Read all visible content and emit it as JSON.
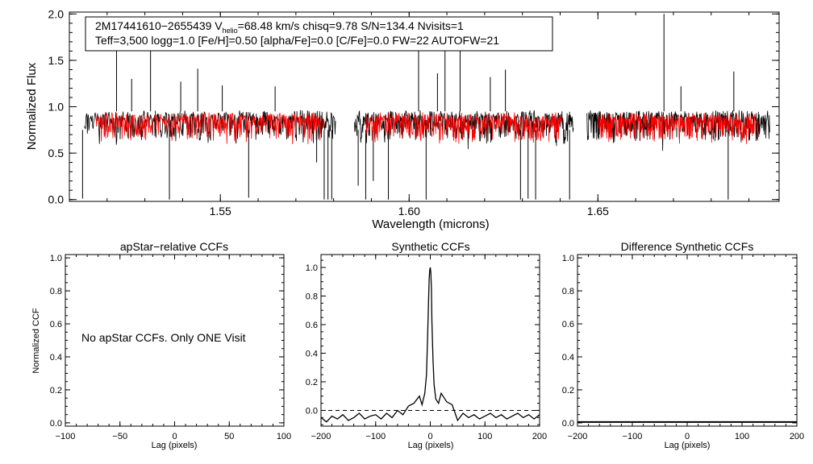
{
  "chart_data": [
    {
      "type": "line",
      "name": "spectrum",
      "xlabel": "Wavelength (microns)",
      "ylabel": "Normalized Flux",
      "xlim": [
        1.51,
        1.698
      ],
      "ylim": [
        -0.02,
        2.02
      ],
      "x_ticks": [
        1.55,
        1.6,
        1.65
      ],
      "x_tick_labels": [
        "1.55",
        "1.60",
        "1.65"
      ],
      "y_ticks": [
        0.0,
        0.5,
        1.0,
        1.5,
        2.0
      ],
      "y_tick_labels": [
        "0.0",
        "0.5",
        "1.0",
        "1.5",
        "2.0"
      ],
      "info_box": {
        "line1_pre": "2M17441610−2655439  V",
        "line1_sub": "helio",
        "line1_post": "=68.48 km/s  chisq=9.78  S/N=134.4  Nvisits=1",
        "line2": "Teff=3,500 logg=1.0 [Fe/H]=0.50 [alpha/Fe]=0.0 [C/Fe]=0.0 FW=22 AUTOFW=21"
      },
      "chip_ranges": [
        [
          1.514,
          1.5805
        ],
        [
          1.5855,
          1.6435
        ],
        [
          1.647,
          1.6955
        ]
      ],
      "series": [
        {
          "role": "observed",
          "color": "#000000",
          "continuum": 0.92
        },
        {
          "role": "model",
          "color": "#ff0000",
          "continuum": 0.9
        }
      ],
      "emission_spikes": [
        {
          "x": 1.5225,
          "y": 1.62
        },
        {
          "x": 1.5265,
          "y": 1.3
        },
        {
          "x": 1.5315,
          "y": 1.73
        },
        {
          "x": 1.5395,
          "y": 1.27
        },
        {
          "x": 1.544,
          "y": 1.41
        },
        {
          "x": 1.5505,
          "y": 1.23
        },
        {
          "x": 1.5645,
          "y": 1.22
        },
        {
          "x": 1.6025,
          "y": 1.65
        },
        {
          "x": 1.6075,
          "y": 1.36
        },
        {
          "x": 1.6095,
          "y": 1.93
        },
        {
          "x": 1.6135,
          "y": 1.7
        },
        {
          "x": 1.6215,
          "y": 1.32
        },
        {
          "x": 1.6255,
          "y": 1.4
        },
        {
          "x": 1.6675,
          "y": 2.0
        },
        {
          "x": 1.672,
          "y": 1.22
        },
        {
          "x": 1.686,
          "y": 1.38
        }
      ],
      "absorption_dips": [
        {
          "x": 1.5135,
          "y": 0.01
        },
        {
          "x": 1.5365,
          "y": 0.0
        },
        {
          "x": 1.5575,
          "y": 0.02
        },
        {
          "x": 1.5755,
          "y": 0.4
        },
        {
          "x": 1.5775,
          "y": 0.0
        },
        {
          "x": 1.5785,
          "y": 0.0
        },
        {
          "x": 1.5795,
          "y": 0.0
        },
        {
          "x": 1.5865,
          "y": 0.15
        },
        {
          "x": 1.5885,
          "y": 0.0
        },
        {
          "x": 1.5905,
          "y": 0.2
        },
        {
          "x": 1.5945,
          "y": 0.0
        },
        {
          "x": 1.6045,
          "y": 0.0
        },
        {
          "x": 1.6295,
          "y": 0.0
        },
        {
          "x": 1.6315,
          "y": 0.01
        },
        {
          "x": 1.6335,
          "y": 0.0
        },
        {
          "x": 1.6425,
          "y": 0.0
        },
        {
          "x": 1.6845,
          "y": 0.0
        }
      ]
    },
    {
      "type": "line",
      "name": "apstar-ccf",
      "title": "apStar−relative CCFs",
      "xlabel": "Lag (pixels)",
      "ylabel": "Normalized CCF",
      "xlim": [
        -100,
        100
      ],
      "ylim": [
        -0.02,
        1.02
      ],
      "x_ticks": [
        -100,
        -50,
        0,
        50,
        100
      ],
      "x_tick_labels": [
        "−100",
        "−50",
        "0",
        "50",
        "100"
      ],
      "y_ticks": [
        0.0,
        0.2,
        0.4,
        0.6,
        0.8,
        1.0
      ],
      "y_tick_labels": [
        "0.0",
        "0.2",
        "0.4",
        "0.6",
        "0.8",
        "1.0"
      ],
      "annotation": "No apStar CCFs.  Only ONE Visit",
      "series": []
    },
    {
      "type": "line",
      "name": "synthetic-ccf",
      "title": "Synthetic CCFs",
      "xlabel": "Lag (pixels)",
      "xlim": [
        -200,
        200
      ],
      "ylim": [
        -0.11,
        1.09
      ],
      "x_ticks": [
        -200,
        -100,
        0,
        100,
        200
      ],
      "x_tick_labels": [
        "−200",
        "−100",
        "0",
        "100",
        "200"
      ],
      "y_ticks": [
        0.0,
        0.2,
        0.4,
        0.6,
        0.8,
        1.0
      ],
      "y_tick_labels": [
        "0.0",
        "0.2",
        "0.4",
        "0.6",
        "0.8",
        "1.0"
      ],
      "reference_line": {
        "y": 0.0,
        "style": "dashed"
      },
      "series": [
        {
          "role": "ccf",
          "color": "#000000",
          "x": [
            -200,
            -190,
            -180,
            -170,
            -160,
            -150,
            -140,
            -130,
            -120,
            -110,
            -100,
            -90,
            -80,
            -70,
            -60,
            -50,
            -40,
            -30,
            -20,
            -15,
            -10,
            -7,
            -5,
            -3,
            -2,
            -1,
            0,
            1,
            2,
            3,
            5,
            7,
            10,
            15,
            20,
            30,
            40,
            50,
            60,
            70,
            80,
            90,
            100,
            110,
            120,
            130,
            140,
            150,
            160,
            170,
            180,
            190,
            200
          ],
          "y": [
            -0.05,
            -0.08,
            -0.04,
            -0.06,
            -0.03,
            -0.07,
            -0.05,
            -0.02,
            -0.06,
            -0.04,
            -0.03,
            -0.06,
            -0.02,
            -0.05,
            0.0,
            -0.03,
            0.03,
            0.05,
            0.1,
            0.04,
            0.12,
            0.25,
            0.5,
            0.8,
            0.92,
            0.98,
            1.0,
            0.96,
            0.85,
            0.62,
            0.35,
            0.18,
            0.08,
            0.05,
            0.12,
            0.06,
            0.04,
            -0.07,
            -0.02,
            -0.05,
            -0.03,
            -0.06,
            -0.04,
            -0.02,
            -0.05,
            -0.03,
            -0.06,
            -0.04,
            -0.02,
            -0.05,
            -0.03,
            -0.06,
            -0.03
          ]
        }
      ]
    },
    {
      "type": "line",
      "name": "difference-ccf",
      "title": "Difference Synthetic CCFs",
      "xlabel": "Lag (pixels)",
      "xlim": [
        -200,
        200
      ],
      "ylim": [
        -0.02,
        1.02
      ],
      "x_ticks": [
        -200,
        -100,
        0,
        100,
        200
      ],
      "x_tick_labels": [
        "−200",
        "−100",
        "0",
        "100",
        "200"
      ],
      "y_ticks": [
        0.0,
        0.2,
        0.4,
        0.6,
        0.8,
        1.0
      ],
      "y_tick_labels": [
        "0.0",
        "0.2",
        "0.4",
        "0.6",
        "0.8",
        "1.0"
      ],
      "series": [
        {
          "role": "difference",
          "color": "#000000",
          "x": [
            -200,
            200
          ],
          "y": [
            0.0,
            0.0
          ]
        }
      ]
    }
  ]
}
